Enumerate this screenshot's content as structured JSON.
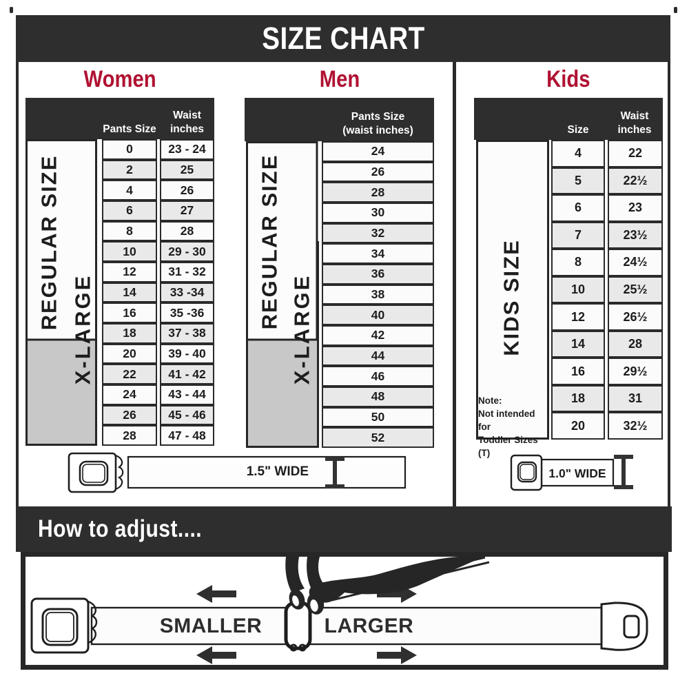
{
  "title": "SIZE CHART",
  "sections": {
    "women": {
      "heading": "Women",
      "col1_header": "Pants Size",
      "col2_header_line1": "Waist",
      "col2_header_line2": "inches",
      "band_regular": "REGULAR SIZE",
      "band_xlarge": "X-LARGE",
      "rows": [
        {
          "size": "0",
          "waist": "23 - 24"
        },
        {
          "size": "2",
          "waist": "25"
        },
        {
          "size": "4",
          "waist": "26"
        },
        {
          "size": "6",
          "waist": "27"
        },
        {
          "size": "8",
          "waist": "28"
        },
        {
          "size": "10",
          "waist": "29 - 30"
        },
        {
          "size": "12",
          "waist": "31 - 32"
        },
        {
          "size": "14",
          "waist": "33 -34"
        },
        {
          "size": "16",
          "waist": "35 -36"
        },
        {
          "size": "18",
          "waist": "37 - 38"
        },
        {
          "size": "20",
          "waist": "39 - 40"
        },
        {
          "size": "22",
          "waist": "41 - 42"
        },
        {
          "size": "24",
          "waist": "43 - 44"
        },
        {
          "size": "26",
          "waist": "45 - 46"
        },
        {
          "size": "28",
          "waist": "47 - 48"
        }
      ]
    },
    "men": {
      "heading": "Men",
      "col_header_line1": "Pants Size",
      "col_header_line2": "(waist inches)",
      "band_regular": "REGULAR SIZE",
      "band_xlarge": "X-LARGE",
      "rows": [
        "24",
        "26",
        "28",
        "30",
        "32",
        "34",
        "36",
        "38",
        "40",
        "42",
        "44",
        "46",
        "48",
        "50",
        "52"
      ]
    },
    "kids": {
      "heading": "Kids",
      "col1_header": "Size",
      "col2_header_line1": "Waist",
      "col2_header_line2": "inches",
      "band": "KIDS SIZE",
      "note_line1": "Note:",
      "note_line2": "Not intended for",
      "note_line3": "Toddler Sizes (T)",
      "rows": [
        {
          "size": "4",
          "waist": "22"
        },
        {
          "size": "5",
          "waist": "22½"
        },
        {
          "size": "6",
          "waist": "23"
        },
        {
          "size": "7",
          "waist": "23½"
        },
        {
          "size": "8",
          "waist": "24½"
        },
        {
          "size": "10",
          "waist": "25½"
        },
        {
          "size": "12",
          "waist": "26½"
        },
        {
          "size": "14",
          "waist": "28"
        },
        {
          "size": "16",
          "waist": "29½"
        },
        {
          "size": "18",
          "waist": "31"
        },
        {
          "size": "20",
          "waist": "32½"
        }
      ]
    }
  },
  "belts": {
    "adult_width_label": "1.5\" WIDE",
    "kids_width_label": "1.0\" WIDE"
  },
  "how_to_adjust": {
    "heading": "How to adjust....",
    "smaller_label": "SMALLER",
    "larger_label": "LARGER"
  },
  "colors": {
    "banner": "#2e2e2e",
    "heading_red": "#b01132",
    "row_light": "#fbfbfb",
    "row_shaded": "#e9e9e9",
    "band_gray": "#c8c8c8",
    "border": "#262626"
  }
}
